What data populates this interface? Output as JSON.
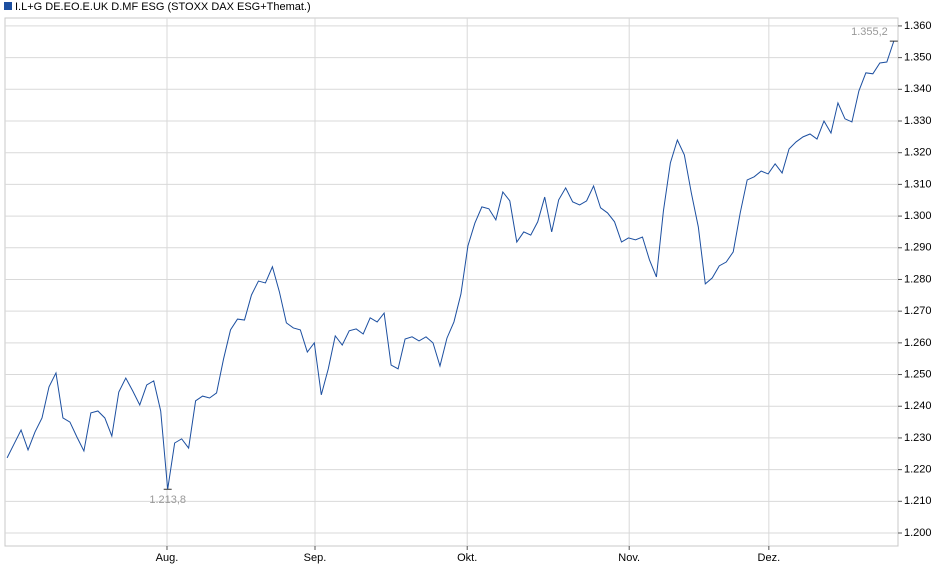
{
  "chart_data": {
    "type": "line",
    "series": [
      {
        "name": "I.L+G DE.EO.E.UK D.MF ESG (STOXX DAX ESG+Themat.)",
        "color": "#1c4fa0",
        "values": [
          1223.7,
          1228.1,
          1232.5,
          1226.2,
          1231.9,
          1236.3,
          1246.1,
          1250.5,
          1236.3,
          1235.0,
          1230.3,
          1225.9,
          1237.9,
          1238.5,
          1236.3,
          1230.6,
          1244.5,
          1248.9,
          1244.8,
          1240.4,
          1246.7,
          1248.0,
          1238.5,
          1213.8,
          1228.4,
          1229.7,
          1226.8,
          1241.7,
          1243.2,
          1242.6,
          1244.2,
          1254.9,
          1264.1,
          1267.5,
          1267.2,
          1275.1,
          1279.5,
          1278.9,
          1284.0,
          1276.1,
          1266.3,
          1264.7,
          1264.1,
          1257.1,
          1260.0,
          1243.6,
          1251.8,
          1262.2,
          1259.3,
          1263.8,
          1264.4,
          1262.8,
          1267.9,
          1266.6,
          1269.4,
          1253.0,
          1251.8,
          1261.2,
          1261.9,
          1260.6,
          1261.9,
          1260.0,
          1252.7,
          1261.5,
          1266.6,
          1275.4,
          1290.6,
          1297.8,
          1302.9,
          1302.3,
          1298.8,
          1307.6,
          1304.8,
          1291.8,
          1295.0,
          1294.0,
          1298.2,
          1306.0,
          1295.0,
          1305.1,
          1308.9,
          1304.5,
          1303.5,
          1304.8,
          1309.5,
          1302.6,
          1301.0,
          1298.2,
          1291.8,
          1293.1,
          1292.5,
          1293.4,
          1286.2,
          1280.8,
          1301.6,
          1316.8,
          1324.0,
          1319.3,
          1307.3,
          1296.6,
          1278.6,
          1280.5,
          1284.3,
          1285.5,
          1288.7,
          1301.0,
          1311.4,
          1312.4,
          1314.2,
          1313.3,
          1316.5,
          1313.6,
          1321.2,
          1323.4,
          1325.0,
          1325.9,
          1324.3,
          1330.0,
          1326.2,
          1335.7,
          1330.7,
          1329.7,
          1339.5,
          1345.2,
          1344.9,
          1348.3,
          1348.6,
          1355.2
        ]
      }
    ],
    "extreme_labels": [
      {
        "x": 127,
        "value": 1355.2,
        "label": "1.355,2"
      },
      {
        "x": 23,
        "value": 1213.8,
        "label": "1.213,8"
      }
    ],
    "xlim": [
      -0.3,
      127.6
    ],
    "xticks": [
      {
        "value": 22.9,
        "label": "Aug."
      },
      {
        "value": 44.1,
        "label": "Sep."
      },
      {
        "value": 65.9,
        "label": "Okt."
      },
      {
        "value": 89.1,
        "label": "Nov."
      },
      {
        "value": 109.1,
        "label": "Dez."
      }
    ],
    "ylim": [
      1195.9,
      1362.5
    ],
    "yticks": [
      {
        "value": 1200,
        "label": "1.200"
      },
      {
        "value": 1210,
        "label": "1.210"
      },
      {
        "value": 1220,
        "label": "1.220"
      },
      {
        "value": 1230,
        "label": "1.230"
      },
      {
        "value": 1240,
        "label": "1.240"
      },
      {
        "value": 1250,
        "label": "1.250"
      },
      {
        "value": 1260,
        "label": "1.260"
      },
      {
        "value": 1270,
        "label": "1.270"
      },
      {
        "value": 1280,
        "label": "1.280"
      },
      {
        "value": 1290,
        "label": "1.290"
      },
      {
        "value": 1300,
        "label": "1.300"
      },
      {
        "value": 1310,
        "label": "1.310"
      },
      {
        "value": 1320,
        "label": "1.320"
      },
      {
        "value": 1330,
        "label": "1.330"
      },
      {
        "value": 1340,
        "label": "1.340"
      },
      {
        "value": 1350,
        "label": "1.350"
      },
      {
        "value": 1360,
        "label": "1.360"
      }
    ],
    "grid": true
  }
}
